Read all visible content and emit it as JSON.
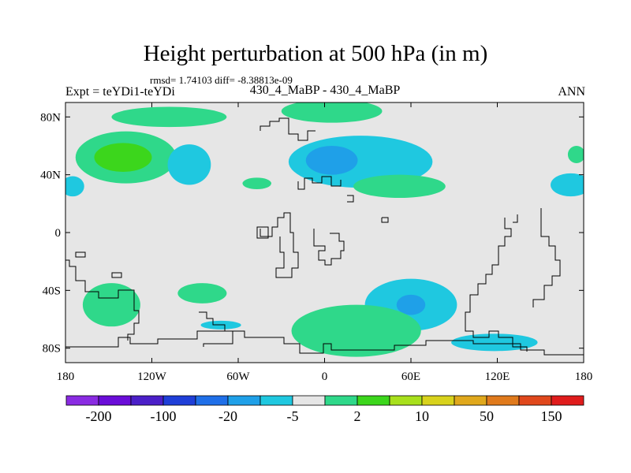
{
  "chart_data": {
    "type": "heatmap",
    "title": "Height perturbation at 500 hPa (in m)",
    "subtitle": "rmsd= 1.74103 diff= -8.38813e-09",
    "left_label": "Expt = teYDi1-teYDi",
    "center_label": "430_4_MaBP - 430_4_MaBP",
    "right_label": "ANN",
    "xlim": [
      -180,
      180
    ],
    "ylim": [
      -90,
      90
    ],
    "x_ticks": [
      {
        "value": -180,
        "label": "180"
      },
      {
        "value": -120,
        "label": "120W"
      },
      {
        "value": -60,
        "label": "60W"
      },
      {
        "value": 0,
        "label": "0"
      },
      {
        "value": 60,
        "label": "60E"
      },
      {
        "value": 120,
        "label": "120E"
      },
      {
        "value": 180,
        "label": "180"
      }
    ],
    "y_ticks": [
      {
        "value": 80,
        "label": "80N"
      },
      {
        "value": 40,
        "label": "40N"
      },
      {
        "value": 0,
        "label": "0"
      },
      {
        "value": -40,
        "label": "40S"
      },
      {
        "value": -80,
        "label": "80S"
      }
    ],
    "colorbar": {
      "colors": [
        "#8a2be2",
        "#6a0dd8",
        "#4b1fc8",
        "#1f3fd8",
        "#1f6fe8",
        "#1fa0e8",
        "#1fc8e0",
        "#e6e6e6",
        "#2fd88a",
        "#3cd61c",
        "#a8e01c",
        "#d8d21c",
        "#e0a81c",
        "#e07a1c",
        "#e0481c",
        "#e01c1c"
      ],
      "labels": [
        {
          "index": 1,
          "text": "-200"
        },
        {
          "index": 3,
          "text": "-100"
        },
        {
          "index": 5,
          "text": "-20"
        },
        {
          "index": 7,
          "text": "-5"
        },
        {
          "index": 9,
          "text": "2"
        },
        {
          "index": 11,
          "text": "10"
        },
        {
          "index": 13,
          "text": "50"
        },
        {
          "index": 15,
          "text": "150"
        }
      ]
    },
    "anomalies": [
      {
        "lon": -138,
        "lat": 52,
        "rlon": 35,
        "rlat": 18,
        "level": "+5"
      },
      {
        "lon": -140,
        "lat": 52,
        "rlon": 20,
        "rlat": 10,
        "level": "+10"
      },
      {
        "lon": -108,
        "lat": 80,
        "rlon": 40,
        "rlat": 7,
        "level": "+5"
      },
      {
        "lon": 5,
        "lat": 84,
        "rlon": 35,
        "rlat": 8,
        "level": "+5"
      },
      {
        "lon": 25,
        "lat": 49,
        "rlon": 50,
        "rlat": 18,
        "level": "-5"
      },
      {
        "lon": 5,
        "lat": 50,
        "rlon": 18,
        "rlat": 10,
        "level": "-20"
      },
      {
        "lon": -94,
        "lat": 47,
        "rlon": 15,
        "rlat": 14,
        "level": "-5"
      },
      {
        "lon": -47,
        "lat": 34,
        "rlon": 10,
        "rlat": 4,
        "level": "+5"
      },
      {
        "lon": 52,
        "lat": 32,
        "rlon": 32,
        "rlat": 8,
        "level": "+5"
      },
      {
        "lon": 171,
        "lat": 33,
        "rlon": 14,
        "rlat": 8,
        "level": "-5"
      },
      {
        "lon": 175,
        "lat": 54,
        "rlon": 6,
        "rlat": 6,
        "level": "+5"
      },
      {
        "lon": -175,
        "lat": 32,
        "rlon": 8,
        "rlat": 7,
        "level": "-5"
      },
      {
        "lon": -148,
        "lat": -50,
        "rlon": 20,
        "rlat": 15,
        "level": "+5"
      },
      {
        "lon": -85,
        "lat": -42,
        "rlon": 17,
        "rlat": 7,
        "level": "+5"
      },
      {
        "lon": 60,
        "lat": -50,
        "rlon": 32,
        "rlat": 18,
        "level": "-5"
      },
      {
        "lon": 60,
        "lat": -50,
        "rlon": 10,
        "rlat": 7,
        "level": "-20"
      },
      {
        "lon": 22,
        "lat": -68,
        "rlon": 45,
        "rlat": 18,
        "level": "+5"
      },
      {
        "lon": 118,
        "lat": -76,
        "rlon": 30,
        "rlat": 6,
        "level": "-5"
      },
      {
        "lon": -72,
        "lat": -64,
        "rlon": 14,
        "rlat": 3,
        "level": "-5"
      }
    ],
    "level_colors": {
      "+5": "#2fd88a",
      "+10": "#3cd61c",
      "-5": "#1fc8e0",
      "-20": "#1fa0e8"
    },
    "background_color": "#e6e6e6"
  }
}
